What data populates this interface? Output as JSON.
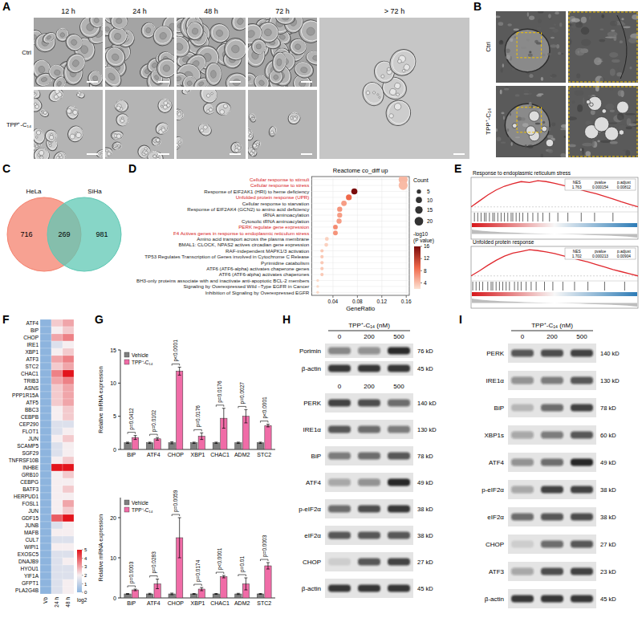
{
  "panels": {
    "A": {
      "letter": "A",
      "columns": [
        "12 h",
        "24 h",
        "48 h",
        "72 h",
        "> 72 h"
      ],
      "rows": [
        "Ctrl",
        "TPP⁺-C₁₄"
      ]
    },
    "B": {
      "letter": "B",
      "rows": [
        "Ctrl",
        "TPP⁺-C₁₄"
      ]
    },
    "C": {
      "letter": "C",
      "sets": [
        {
          "name": "HeLa",
          "color": "#f4826e",
          "count": 716
        },
        {
          "name": "SiHa",
          "color": "#5fc8b4",
          "count": 981
        }
      ],
      "overlap": 269
    },
    "D": {
      "letter": "D"
    },
    "E": {
      "letter": "E",
      "plots": [
        {
          "title": "Response to endoplasmic reticulum stress",
          "stats_header": [
            "NES",
            "pvalue",
            "p.adjust"
          ],
          "stats": [
            "1.763",
            "0.000154",
            "0.00812"
          ],
          "color": "#e0282e",
          "xlim": [
            0,
            100
          ],
          "ylim": [
            -0.1,
            0.7
          ],
          "tick_labels": false,
          "x": [
            0,
            5,
            10,
            15,
            20,
            25,
            30,
            35,
            40,
            45,
            50,
            55,
            60,
            65,
            70,
            75,
            80,
            85,
            90,
            95,
            100
          ],
          "values": [
            0,
            0.14,
            0.28,
            0.4,
            0.49,
            0.55,
            0.6,
            0.58,
            0.62,
            0.6,
            0.56,
            0.51,
            0.46,
            0.41,
            0.36,
            0.31,
            0.25,
            0.19,
            0.12,
            0.06,
            0
          ],
          "hits": [
            2,
            4,
            6,
            8,
            9,
            11,
            13,
            14,
            16,
            18,
            20,
            22,
            24,
            25,
            27,
            29,
            31,
            34,
            37,
            40,
            43,
            47,
            52,
            58,
            66,
            74,
            85
          ]
        },
        {
          "title": "Unfolded protein response",
          "stats_header": [
            "NES",
            "pvalue",
            "p.adjust"
          ],
          "stats": [
            "1.702",
            "0.000213",
            "0.00904"
          ],
          "color": "#e0282e",
          "xlim": [
            0,
            100
          ],
          "ylim": [
            -0.1,
            0.7
          ],
          "tick_labels": false,
          "x": [
            0,
            5,
            10,
            15,
            20,
            25,
            30,
            35,
            40,
            45,
            50,
            55,
            60,
            65,
            70,
            75,
            80,
            85,
            90,
            95,
            100
          ],
          "values": [
            0,
            0.12,
            0.25,
            0.37,
            0.47,
            0.54,
            0.58,
            0.62,
            0.6,
            0.57,
            0.53,
            0.48,
            0.43,
            0.38,
            0.33,
            0.27,
            0.21,
            0.15,
            0.1,
            0.05,
            0
          ],
          "hits": [
            1,
            3,
            5,
            7,
            10,
            12,
            13,
            15,
            17,
            19,
            21,
            23,
            26,
            28,
            30,
            33,
            36,
            39,
            44,
            49,
            55,
            62,
            70,
            80,
            92
          ]
        }
      ]
    },
    "F": {
      "letter": "F"
    },
    "G": {
      "letter": "G"
    },
    "H": {
      "letter": "H",
      "header": "TPP⁺-C₁₄ (nM)",
      "blots": [
        {
          "lanes": [
            0,
            200,
            500
          ],
          "rows": [
            {
              "protein": "Porimin",
              "size": "76 kD",
              "intensities": [
                0.45,
                0.4,
                0.9
              ]
            },
            {
              "protein": "β-actin",
              "size": "45 kD",
              "intensities": [
                0.85,
                0.85,
                0.85
              ]
            }
          ]
        },
        {
          "lanes": [
            0,
            200,
            500
          ],
          "rows": [
            {
              "protein": "PERK",
              "size": "140 kD",
              "intensities": [
                0.8,
                0.75,
                0.6
              ]
            },
            {
              "protein": "IRE1α",
              "size": "130 kD",
              "intensities": [
                0.7,
                0.6,
                0.5
              ]
            },
            {
              "protein": "BiP",
              "size": "78 kD",
              "intensities": [
                0.5,
                0.6,
                0.7
              ]
            },
            {
              "protein": "ATF4",
              "size": "49 kD",
              "intensities": [
                0.3,
                0.4,
                0.95
              ]
            },
            {
              "protein": "p-eIF2α",
              "size": "38 kD",
              "intensities": [
                0.6,
                0.75,
                0.85
              ]
            },
            {
              "protein": "eIF2α",
              "size": "38 kD",
              "intensities": [
                0.7,
                0.7,
                0.7
              ]
            },
            {
              "protein": "CHOP",
              "size": "27 kD",
              "intensities": [
                0.1,
                0.7,
                0.8
              ]
            },
            {
              "protein": "β-actin",
              "size": "45 kD",
              "intensities": [
                0.85,
                0.85,
                0.85
              ]
            }
          ]
        }
      ]
    },
    "I": {
      "letter": "I",
      "header": "TPP⁺-C₁₄ (nM)",
      "blots": [
        {
          "lanes": [
            0,
            200,
            500
          ],
          "rows": [
            {
              "protein": "PERK",
              "size": "140 kD",
              "intensities": [
                0.7,
                0.75,
                0.8
              ]
            },
            {
              "protein": "IRE1α",
              "size": "130 kD",
              "intensities": [
                0.4,
                0.5,
                0.7
              ]
            },
            {
              "protein": "BiP",
              "size": "78 kD",
              "intensities": [
                0.2,
                0.6,
                0.8
              ]
            },
            {
              "protein": "XBP1s",
              "size": "60 kD",
              "intensities": [
                0.3,
                0.5,
                0.7
              ]
            },
            {
              "protein": "ATF4",
              "size": "49 kD",
              "intensities": [
                0.4,
                0.6,
                0.95
              ]
            },
            {
              "protein": "p-eIF2α",
              "size": "38 kD",
              "intensities": [
                0.3,
                0.8,
                0.8
              ]
            },
            {
              "protein": "eIF2α",
              "size": "38 kD",
              "intensities": [
                0.6,
                0.7,
                0.75
              ]
            },
            {
              "protein": "CHOP",
              "size": "27 kD",
              "intensities": [
                0.1,
                0.6,
                0.7
              ]
            },
            {
              "protein": "ATF3",
              "size": "23 kD",
              "intensities": [
                0.3,
                0.75,
                0.8
              ]
            },
            {
              "protein": "β-actin",
              "size": "45 kD",
              "intensities": [
                0.85,
                0.85,
                0.85
              ]
            }
          ]
        }
      ]
    }
  },
  "chart_data": [
    {
      "type": "scatter",
      "title": "Reactome co_diff up",
      "x_label": "GeneRatio",
      "orientation": "horizontal",
      "grid": true,
      "categories": [
        "Cellular response to stimuli",
        "Cellular response to stress",
        "Response of EIF2AK1 (HRI) to heme deficiency",
        "Unfolded protein response (UPR)",
        "Cellular response to starvation",
        "Response of EIF2AK4 (GCN2) to amino acid deficiency",
        "tRNA aminoacylation",
        "Cytosolic tRNA aminoacylation",
        "PERK regulate gene expression",
        "F4 Actives genes in response to endoplasmic reticulum stress",
        "Amino acid transport across the plasma membrane",
        "BMAL1: CLOCK, NPAS2 actives circadian gene expression",
        "RAF-independent MAPK1/3 activation",
        "TP53 Regulates Transcription of Genes involved in Cytochrome C Release",
        "Pyrimidine catabolism",
        "ATF6 (ATF6-alpha) activates chaperone genes",
        "ATF6 (ATF6-alpha) activates chaperones",
        "BH3-only proteins associate with and inactivate anti-apoptotic BCL-2 members",
        "Signaling by Overexpressed Wild –Type EGFR in Cancer",
        "Inhibition of Signaling by Overexpressed EGFR"
      ],
      "label_colors": [
        "#d7191c",
        "#d7191c",
        "#222222",
        "#d7191c",
        "#222222",
        "#222222",
        "#222222",
        "#222222",
        "#d7191c",
        "#d7191c",
        "#222222",
        "#222222",
        "#222222",
        "#222222",
        "#222222",
        "#222222",
        "#222222",
        "#222222",
        "#222222",
        "#222222"
      ],
      "values": [
        0.155,
        0.155,
        0.075,
        0.066,
        0.058,
        0.051,
        0.051,
        0.05,
        0.044,
        0.044,
        0.03,
        0.029,
        0.022,
        0.022,
        0.022,
        0.022,
        0.022,
        0.015,
        0.015,
        0.015
      ],
      "sizes": [
        22,
        22,
        10,
        9,
        8,
        7,
        7,
        7,
        6,
        6,
        4,
        4,
        3,
        3,
        3,
        3,
        3,
        2,
        2,
        2
      ],
      "color_values": [
        4.5,
        4.3,
        16,
        9,
        6,
        6.5,
        6,
        6,
        7,
        6.5,
        3,
        3,
        3.5,
        3.5,
        3.5,
        3.5,
        3.5,
        2.5,
        2.5,
        2.5
      ],
      "xlim": [
        0.005,
        0.165
      ],
      "xticks": [
        0.04,
        0.08,
        0.12,
        0.16
      ],
      "size_legend": {
        "title": "Count",
        "values": [
          5,
          10,
          15,
          20
        ]
      },
      "colorbar": {
        "title": "-log10 (P value)",
        "range": [
          2,
          16
        ],
        "ticks": [
          4,
          8,
          12,
          16
        ]
      }
    },
    {
      "type": "heatmap",
      "categories": [
        "Vb",
        "24 h",
        "48 h"
      ],
      "rows": [
        "ATF4",
        "BiP",
        "CHOP",
        "IRE1",
        "XBP1",
        "ATF3",
        "STC2",
        "CHAC1",
        "TRIB3",
        "ASNS",
        "PPP1R15A",
        "ATF5",
        "BBC3",
        "CEBPB",
        "CEP290",
        "FLOT1",
        "JUN",
        "SCAMP5",
        "SGF29",
        "TNFRSF10B",
        "INHBE",
        "GRB10",
        "CEBPG",
        "BATF3",
        "HERPUD1",
        "FOSL1",
        "JUN",
        "GDF15",
        "JUNB",
        "MAFB",
        "CUL7",
        "WIPI1",
        "EXOSC5",
        "DNAJB9",
        "HYOU1",
        "YIF1A",
        "GFPT1",
        "PLA2G4B"
      ],
      "cells": [
        [
          0,
          2.5,
          3
        ],
        [
          0,
          2,
          2.5
        ],
        [
          0,
          3,
          3.5
        ],
        [
          0,
          1.5,
          2
        ],
        [
          0,
          2,
          2.5
        ],
        [
          0,
          3,
          3.5
        ],
        [
          0,
          2.5,
          3
        ],
        [
          0,
          3.5,
          5
        ],
        [
          0,
          3,
          3.5
        ],
        [
          0,
          2.5,
          3
        ],
        [
          0,
          2.5,
          3
        ],
        [
          0,
          2.5,
          3
        ],
        [
          0,
          2,
          2.5
        ],
        [
          0,
          2,
          2.5
        ],
        [
          0,
          1.5,
          1.5
        ],
        [
          0,
          1.5,
          2
        ],
        [
          0,
          2,
          2.5
        ],
        [
          0,
          1.5,
          2
        ],
        [
          0,
          1.5,
          2
        ],
        [
          0,
          2,
          2.5
        ],
        [
          0,
          5,
          5
        ],
        [
          0,
          2,
          2.5
        ],
        [
          0,
          2,
          2
        ],
        [
          0,
          2,
          2.5
        ],
        [
          0,
          2,
          2
        ],
        [
          0,
          2,
          3
        ],
        [
          0,
          2,
          2.5
        ],
        [
          0,
          4,
          5
        ],
        [
          0,
          1.5,
          2
        ],
        [
          0,
          2,
          2
        ],
        [
          0,
          1.5,
          1.5
        ],
        [
          0,
          2,
          2
        ],
        [
          0,
          1.5,
          1.5
        ],
        [
          0,
          1.5,
          2
        ],
        [
          0,
          1.5,
          1.5
        ],
        [
          0,
          1.5,
          1.5
        ],
        [
          0,
          1.5,
          2
        ],
        [
          0,
          1.5,
          2
        ]
      ],
      "colorbar": {
        "title": "log2",
        "range": [
          0,
          5
        ],
        "ticks": [
          0,
          1,
          2,
          3,
          4,
          5
        ]
      }
    },
    {
      "type": "bar",
      "y_label": "Relative mRNA expression",
      "legend": "upper-left",
      "categories": [
        "BiP",
        "ATF4",
        "CHOP",
        "XBP1",
        "CHAC1",
        "ADM2",
        "STC2"
      ],
      "series": [
        {
          "name": "Vehicle",
          "color": "#7f7f7f",
          "values": [
            1,
            1,
            1,
            1,
            1,
            1,
            1
          ],
          "errors": [
            0.1,
            0.1,
            0.15,
            0.1,
            0.1,
            0.1,
            0.1
          ]
        },
        {
          "name": "TPP⁺-C₁₄",
          "color": "#f06ca7",
          "values": [
            1.8,
            1.6,
            11.8,
            2.0,
            4.7,
            5.0,
            3.6
          ],
          "errors": [
            0.3,
            0.2,
            0.6,
            0.5,
            1.5,
            1.0,
            0.2
          ]
        }
      ],
      "annotations": [
        "p=0.0412",
        "p=0.0102",
        "p<0.0001",
        "p=0.0176",
        "p=0.0176",
        "p=0.0027",
        "p<0.0001"
      ],
      "ylim": [
        0,
        15
      ],
      "yticks": [
        0,
        5,
        10,
        15
      ]
    },
    {
      "type": "bar",
      "y_label": "Relative mRNA expression",
      "legend": "upper-left",
      "categories": [
        "BiP",
        "ATF4",
        "CHOP",
        "XBP1",
        "CHAC1",
        "ADM2",
        "STC2"
      ],
      "series": [
        {
          "name": "Vehicle",
          "color": "#7f7f7f",
          "values": [
            1,
            1,
            1,
            1,
            1,
            1,
            1
          ],
          "errors": [
            0.1,
            0.15,
            0.2,
            0.1,
            0.1,
            0.15,
            0.1
          ]
        },
        {
          "name": "TPP⁺-C₁₄",
          "color": "#f06ca7",
          "values": [
            2.0,
            3.5,
            15,
            2.2,
            5.3,
            3.5,
            8.0
          ],
          "errors": [
            0.2,
            1.2,
            5,
            0.4,
            0.3,
            1.5,
            0.8
          ]
        }
      ],
      "annotations": [
        "p=0.0003",
        "p=0.0283",
        "p=0.0059",
        "p=0.0174",
        "p<0.0001",
        "p=0.01",
        "p=0.0003"
      ],
      "ylim": [
        0,
        25
      ],
      "yticks": [
        0,
        10,
        20
      ]
    }
  ]
}
